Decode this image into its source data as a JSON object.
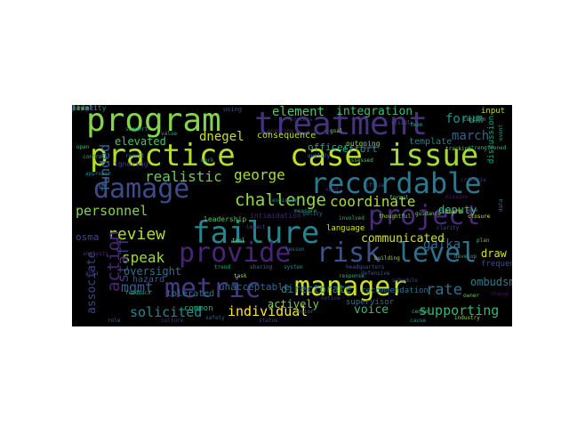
{
  "cloud": {
    "background": "#000000",
    "words": [
      {
        "text": "program",
        "color": "#86d549"
      },
      {
        "text": "treatment",
        "color": "#46327e"
      },
      {
        "text": "practice",
        "color": "#b5de2b"
      },
      {
        "text": "case",
        "color": "#c2df23"
      },
      {
        "text": "issue",
        "color": "#a2da37"
      },
      {
        "text": "damage",
        "color": "#3e4a89"
      },
      {
        "text": "recordable",
        "color": "#2a788e"
      },
      {
        "text": "failure",
        "color": "#25848e"
      },
      {
        "text": "project",
        "color": "#472a7a"
      },
      {
        "text": "provide",
        "color": "#482475"
      },
      {
        "text": "risk",
        "color": "#3b528b"
      },
      {
        "text": "level",
        "color": "#2c728e"
      },
      {
        "text": "metric",
        "color": "#443a83"
      },
      {
        "text": "manager",
        "color": "#c8e020"
      },
      {
        "text": "challenge",
        "color": "#95d840"
      },
      {
        "text": "realistic",
        "color": "#6ccd5a"
      },
      {
        "text": "george",
        "color": "#a5db36"
      },
      {
        "text": "coordinate",
        "color": "#addc30"
      },
      {
        "text": "review",
        "color": "#b2dd2d"
      },
      {
        "text": "speak",
        "color": "#a0da39"
      },
      {
        "text": "element",
        "color": "#52c569"
      },
      {
        "text": "integration",
        "color": "#3dbc74"
      },
      {
        "text": "forum",
        "color": "#21918c"
      },
      {
        "text": "march",
        "color": "#33638d"
      },
      {
        "text": "dnegel",
        "color": "#c8e020"
      },
      {
        "text": "personnel",
        "color": "#84d44b"
      },
      {
        "text": "gafka",
        "color": "#2e6e8e"
      },
      {
        "text": "rate",
        "color": "#2e6f8e"
      },
      {
        "text": "supporting",
        "color": "#33b67a"
      },
      {
        "text": "voice",
        "color": "#3aba76"
      },
      {
        "text": "individual",
        "color": "#fde725"
      },
      {
        "text": "solicited",
        "color": "#24878e"
      },
      {
        "text": "action",
        "color": "#482677"
      },
      {
        "text": "staff",
        "color": "#453781"
      },
      {
        "text": "funded",
        "color": "#31678e"
      },
      {
        "text": "mgmt",
        "color": "#355f8d"
      },
      {
        "text": "associate",
        "color": "#404387"
      },
      {
        "text": "communicated",
        "color": "#d2e21b"
      },
      {
        "text": "directorate",
        "color": "#27808e"
      },
      {
        "text": "deputy",
        "color": "#3bbb75"
      },
      {
        "text": "officer",
        "color": "#22a785"
      },
      {
        "text": "effort",
        "color": "#1f988b"
      },
      {
        "text": "draw",
        "color": "#d8e219"
      },
      {
        "text": "ombudsman",
        "color": "#287c8e"
      },
      {
        "text": "oversight",
        "color": "#2c718e"
      },
      {
        "text": "elevated",
        "color": "#4ac16d"
      },
      {
        "text": "actively",
        "color": "#77d153"
      },
      {
        "text": "unacceptable",
        "color": "#31678e"
      },
      {
        "text": "consequence",
        "color": "#b8de29"
      },
      {
        "text": "template",
        "color": "#277f8e"
      },
      {
        "text": "discussion",
        "color": "#1fa088"
      },
      {
        "text": "osma",
        "color": "#414487"
      },
      {
        "text": "hazard",
        "color": "#39568c"
      },
      {
        "text": "tolerated",
        "color": "#2a788e"
      },
      {
        "text": "frequency",
        "color": "#3f4889"
      },
      {
        "text": "input",
        "color": "#b5de2b"
      },
      {
        "text": "language",
        "color": "#d0e11c"
      },
      {
        "text": "recommendation",
        "color": "#2d708e"
      },
      {
        "text": "supervisor",
        "color": "#2d708e"
      },
      {
        "text": "common",
        "color": "#2ab07f"
      },
      {
        "text": "leadership",
        "color": "#56c667"
      },
      {
        "text": "intimidation",
        "color": "#482173"
      },
      {
        "text": "outgoing",
        "color": "#84d44b"
      },
      {
        "text": "using",
        "color": "#3e4a89"
      },
      {
        "text": "ignoring",
        "color": "#443b84"
      },
      {
        "text": "assessed",
        "color": "#4fc46a"
      },
      {
        "text": "measure",
        "color": "#1f9e89"
      },
      {
        "text": "feedback",
        "color": "#20a486"
      },
      {
        "text": "industry",
        "color": "#8bd646"
      },
      {
        "text": "defensive",
        "color": "#39568c"
      },
      {
        "text": "response",
        "color": "#2ab07f"
      },
      {
        "text": "criteria",
        "color": "#433e85"
      },
      {
        "text": "guidance",
        "color": "#6ece58"
      },
      {
        "text": "engineer",
        "color": "#23898e"
      },
      {
        "text": "ensuring",
        "color": "#472d7b"
      },
      {
        "text": "involved",
        "color": "#35b779"
      },
      {
        "text": "clarity",
        "color": "#3b528b"
      },
      {
        "text": "develop",
        "color": "#22a884"
      },
      {
        "text": "formal",
        "color": "#5ec962"
      },
      {
        "text": "schedule",
        "color": "#3e4989"
      },
      {
        "text": "closure",
        "color": "#d5e21a"
      },
      {
        "text": "senior",
        "color": "#31688e"
      },
      {
        "text": "building",
        "color": "#9bd93c"
      },
      {
        "text": "quality",
        "color": "#2d708e"
      },
      {
        "text": "support",
        "color": "#1f958b"
      },
      {
        "text": "process",
        "color": "#463480"
      },
      {
        "text": "analysis",
        "color": "#482878"
      },
      {
        "text": "approach",
        "color": "#26828e"
      },
      {
        "text": "tracking",
        "color": "#7ad151"
      },
      {
        "text": "notice",
        "color": "#414487"
      },
      {
        "text": "sharing",
        "color": "#2c738e"
      },
      {
        "text": "concern",
        "color": "#4cc26c"
      },
      {
        "text": "thoughtful",
        "color": "#9dd93b"
      },
      {
        "text": "visible",
        "color": "#38588c"
      },
      {
        "text": "headquarters",
        "color": "#3a548c"
      },
      {
        "text": "strengthened",
        "color": "#2fb47c"
      },
      {
        "text": "mission",
        "color": "#481f70"
      },
      {
        "text": "team",
        "color": "#1e9c89"
      },
      {
        "text": "safety",
        "color": "#35608d"
      },
      {
        "text": "report",
        "color": "#365c8d"
      },
      {
        "text": "control",
        "color": "#29af7f"
      },
      {
        "text": "impact",
        "color": "#3f4788"
      },
      {
        "text": "value",
        "color": "#21a685"
      },
      {
        "text": "tool",
        "color": "#8ed645"
      },
      {
        "text": "area",
        "color": "#424086"
      },
      {
        "text": "system",
        "color": "#24868e"
      },
      {
        "text": "center",
        "color": "#31b57b"
      },
      {
        "text": "plan",
        "color": "#4ec36b"
      },
      {
        "text": "data",
        "color": "#2b748e"
      },
      {
        "text": "task",
        "color": "#a8db34"
      },
      {
        "text": "need",
        "color": "#482979"
      },
      {
        "text": "goal",
        "color": "#7fd34e"
      },
      {
        "text": "lesson",
        "color": "#2b758e"
      },
      {
        "text": "trend",
        "color": "#25ab82"
      },
      {
        "text": "office",
        "color": "#3b518b"
      },
      {
        "text": "event",
        "color": "#1f9f88"
      },
      {
        "text": "culture",
        "color": "#453882"
      },
      {
        "text": "board",
        "color": "#b0dd2f"
      },
      {
        "text": "policy",
        "color": "#287d8e"
      },
      {
        "text": "status",
        "color": "#404588"
      },
      {
        "text": "cause",
        "color": "#20928c"
      },
      {
        "text": "owner",
        "color": "#65cb5e"
      },
      {
        "text": "result",
        "color": "#2e6d8e"
      },
      {
        "text": "change",
        "color": "#471063"
      },
      {
        "text": "open",
        "color": "#3ebc73"
      },
      {
        "text": "work",
        "color": "#23a983"
      },
      {
        "text": "role",
        "color": "#306a8e"
      },
      {
        "text": "level",
        "color": "#97d83f"
      },
      {
        "text": "budget",
        "color": "#46307e"
      },
      {
        "text": "priority",
        "color": "#21918c"
      },
      {
        "text": "item",
        "color": "#75d054"
      },
      {
        "text": "input",
        "color": "#3c4f8a"
      }
    ]
  }
}
